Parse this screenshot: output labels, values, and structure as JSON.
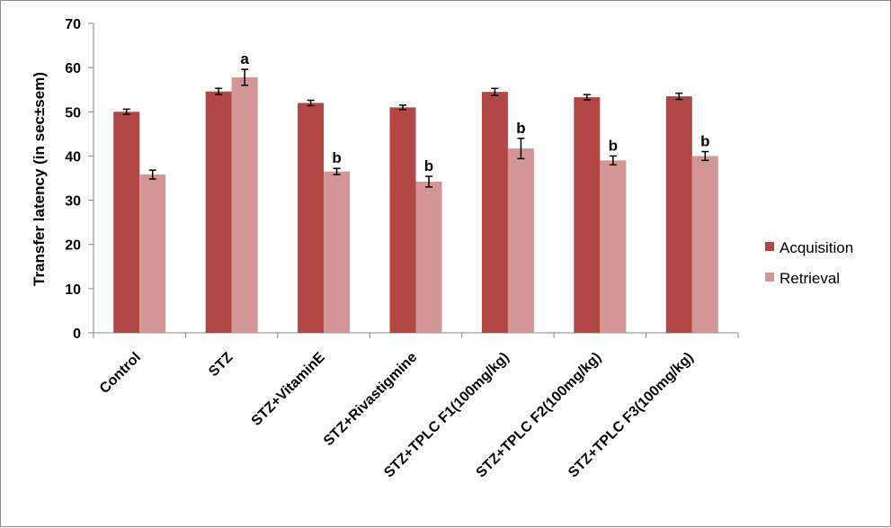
{
  "chart_data": {
    "type": "bar",
    "ylabel": "Transfer latency (in sec±sem)",
    "xlabel": "",
    "ylim": [
      0,
      70
    ],
    "yticks": [
      0,
      10,
      20,
      30,
      40,
      50,
      60,
      70
    ],
    "grid": false,
    "legend_position": "right",
    "categories": [
      "Control",
      "STZ",
      "STZ+VitaminE",
      "STZ+Rivastigmine",
      "STZ+TPLC F1(100mg/kg)",
      "STZ+TPLC F2(100mg/kg)",
      "STZ+TPLC F3(100mg/kg)"
    ],
    "series": [
      {
        "name": "Acquisition",
        "color": "#b04745",
        "values": [
          50,
          54.6,
          52,
          51,
          54.5,
          53.3,
          53.5
        ],
        "errors": [
          0.6,
          0.7,
          0.6,
          0.5,
          0.8,
          0.6,
          0.7
        ],
        "significance": [
          "",
          "",
          "",
          "",
          "",
          "",
          ""
        ]
      },
      {
        "name": "Retrieval",
        "color": "#d49694",
        "values": [
          35.8,
          57.8,
          36.5,
          34.2,
          41.7,
          39,
          40
        ],
        "errors": [
          1,
          1.8,
          0.7,
          1.2,
          2.3,
          1,
          1
        ],
        "significance": [
          "",
          "a",
          "b",
          "b",
          "b",
          "b",
          "b"
        ]
      }
    ]
  }
}
